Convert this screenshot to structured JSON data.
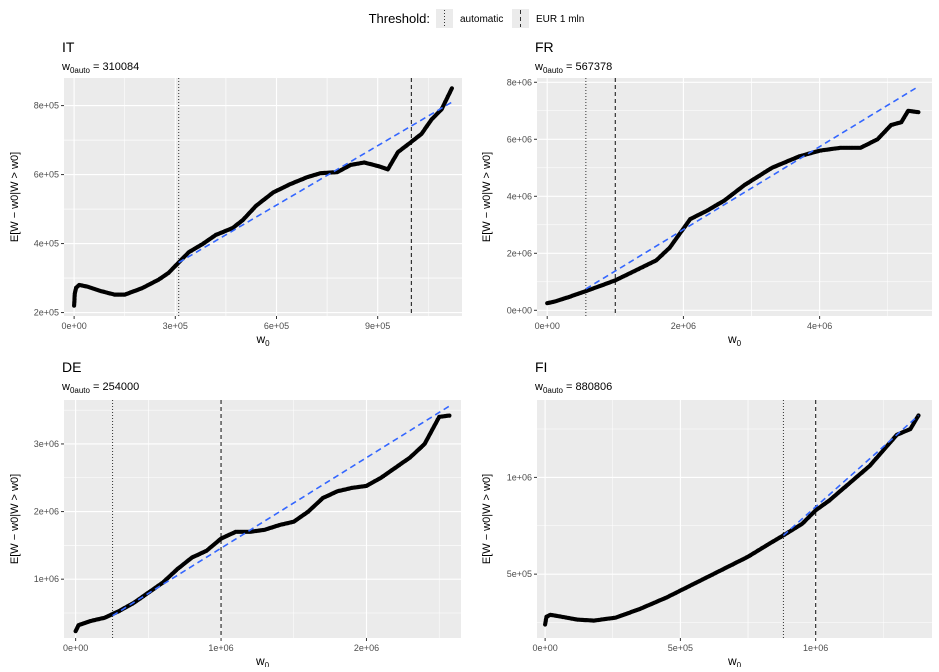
{
  "legend": {
    "title": "Threshold:",
    "items": [
      {
        "label": "automatic",
        "linetype": "dotted"
      },
      {
        "label": "EUR 1 mln",
        "linetype": "dashed"
      }
    ]
  },
  "colors": {
    "panel_bg": "#EBEBEB",
    "grid": "#FFFFFF",
    "points": "#000000",
    "fit_line": "#3366FF",
    "threshold_line": "#333333",
    "text": "#000000",
    "tick_text": "#4D4D4D"
  },
  "chart_data": [
    {
      "type": "scatter",
      "title": "IT",
      "subtitle_sub": "0auto",
      "subtitle_value": "310084",
      "xlabel_sub": "0",
      "ylabel": "E[W − w0|W > w0]",
      "xlim": [
        -30000,
        1150000
      ],
      "ylim": [
        190000,
        880000
      ],
      "xticks": [
        0,
        300000,
        600000,
        900000
      ],
      "xtick_labels": [
        "0e+00",
        "3e+05",
        "6e+05",
        "9e+05"
      ],
      "yticks": [
        200000,
        400000,
        600000,
        800000
      ],
      "ytick_labels": [
        "2e+05",
        "4e+05",
        "6e+05",
        "8e+05"
      ],
      "threshold_auto": 310084,
      "threshold_fixed": 1000000,
      "fit_line": [
        [
          310084,
          345000
        ],
        [
          1120000,
          810000
        ]
      ],
      "curve": [
        [
          0,
          220000
        ],
        [
          2000,
          255000
        ],
        [
          6000,
          272000
        ],
        [
          15000,
          280000
        ],
        [
          40000,
          275000
        ],
        [
          80000,
          262000
        ],
        [
          120000,
          252000
        ],
        [
          150000,
          252000
        ],
        [
          200000,
          270000
        ],
        [
          250000,
          295000
        ],
        [
          280000,
          315000
        ],
        [
          310000,
          345000
        ],
        [
          340000,
          375000
        ],
        [
          380000,
          398000
        ],
        [
          420000,
          425000
        ],
        [
          470000,
          445000
        ],
        [
          500000,
          468000
        ],
        [
          540000,
          510000
        ],
        [
          590000,
          548000
        ],
        [
          640000,
          572000
        ],
        [
          690000,
          592000
        ],
        [
          730000,
          604000
        ],
        [
          780000,
          607000
        ],
        [
          820000,
          628000
        ],
        [
          860000,
          635000
        ],
        [
          900000,
          625000
        ],
        [
          930000,
          615000
        ],
        [
          960000,
          665000
        ],
        [
          1000000,
          695000
        ],
        [
          1030000,
          718000
        ],
        [
          1060000,
          760000
        ],
        [
          1090000,
          790000
        ],
        [
          1120000,
          850000
        ]
      ]
    },
    {
      "type": "scatter",
      "title": "FR",
      "subtitle_sub": "0auto",
      "subtitle_value": "567378",
      "xlabel_sub": "0",
      "ylabel": "E[W − w0|W > w0]",
      "xlim": [
        -150000,
        5650000
      ],
      "ylim": [
        -200000,
        8150000
      ],
      "xticks": [
        0,
        2000000,
        4000000
      ],
      "xtick_labels": [
        "0e+00",
        "2e+06",
        "4e+06"
      ],
      "yticks": [
        0,
        2000000,
        4000000,
        6000000,
        8000000
      ],
      "ytick_labels": [
        "0e+00",
        "2e+06",
        "4e+06",
        "6e+06",
        "8e+06"
      ],
      "threshold_auto": 567378,
      "threshold_fixed": 1000000,
      "fit_line": [
        [
          567378,
          750000
        ],
        [
          5450000,
          7850000
        ]
      ],
      "curve": [
        [
          0,
          250000
        ],
        [
          100000,
          300000
        ],
        [
          300000,
          450000
        ],
        [
          600000,
          700000
        ],
        [
          1000000,
          1050000
        ],
        [
          1300000,
          1400000
        ],
        [
          1600000,
          1750000
        ],
        [
          1800000,
          2200000
        ],
        [
          1950000,
          2700000
        ],
        [
          2100000,
          3200000
        ],
        [
          2350000,
          3500000
        ],
        [
          2600000,
          3850000
        ],
        [
          2900000,
          4400000
        ],
        [
          3100000,
          4700000
        ],
        [
          3300000,
          5000000
        ],
        [
          3500000,
          5200000
        ],
        [
          3700000,
          5400000
        ],
        [
          4000000,
          5600000
        ],
        [
          4300000,
          5700000
        ],
        [
          4600000,
          5700000
        ],
        [
          4850000,
          6000000
        ],
        [
          5050000,
          6500000
        ],
        [
          5200000,
          6600000
        ],
        [
          5300000,
          7000000
        ],
        [
          5450000,
          6950000
        ]
      ]
    },
    {
      "type": "scatter",
      "title": "DE",
      "subtitle_sub": "0auto",
      "subtitle_value": "254000",
      "xlabel_sub": "0",
      "ylabel": "E[W − w0|W > w0]",
      "xlim": [
        -80000,
        2650000
      ],
      "ylim": [
        130000,
        3650000
      ],
      "xticks": [
        0,
        1000000,
        2000000
      ],
      "xtick_labels": [
        "0e+00",
        "1e+06",
        "2e+06"
      ],
      "yticks": [
        1000000,
        2000000,
        3000000
      ],
      "ytick_labels": [
        "1e+06",
        "2e+06",
        "3e+06"
      ],
      "threshold_auto": 254000,
      "threshold_fixed": 1000000,
      "fit_line": [
        [
          254000,
          460000
        ],
        [
          2570000,
          3560000
        ]
      ],
      "curve": [
        [
          0,
          230000
        ],
        [
          20000,
          320000
        ],
        [
          100000,
          380000
        ],
        [
          200000,
          430000
        ],
        [
          300000,
          530000
        ],
        [
          400000,
          650000
        ],
        [
          500000,
          800000
        ],
        [
          600000,
          950000
        ],
        [
          700000,
          1150000
        ],
        [
          800000,
          1320000
        ],
        [
          900000,
          1420000
        ],
        [
          1000000,
          1600000
        ],
        [
          1100000,
          1700000
        ],
        [
          1200000,
          1700000
        ],
        [
          1300000,
          1730000
        ],
        [
          1400000,
          1800000
        ],
        [
          1500000,
          1850000
        ],
        [
          1600000,
          2000000
        ],
        [
          1700000,
          2200000
        ],
        [
          1800000,
          2300000
        ],
        [
          1900000,
          2350000
        ],
        [
          2000000,
          2380000
        ],
        [
          2100000,
          2500000
        ],
        [
          2200000,
          2650000
        ],
        [
          2300000,
          2800000
        ],
        [
          2400000,
          3000000
        ],
        [
          2500000,
          3400000
        ],
        [
          2570000,
          3420000
        ]
      ]
    },
    {
      "type": "scatter",
      "title": "FI",
      "subtitle_sub": "0auto",
      "subtitle_value": "880806",
      "xlabel_sub": "0",
      "ylabel": "E[W − w0|W > w0]",
      "xlim": [
        -30000,
        1430000
      ],
      "ylim": [
        170000,
        1400000
      ],
      "xticks": [
        0,
        500000,
        1000000
      ],
      "xtick_labels": [
        "0e+00",
        "5e+05",
        "1e+06"
      ],
      "yticks": [
        500000,
        1000000
      ],
      "ytick_labels": [
        "5e+05",
        "1e+06"
      ],
      "threshold_auto": 880806,
      "threshold_fixed": 1000000,
      "fit_line": [
        [
          880806,
          700000
        ],
        [
          1380000,
          1320000
        ]
      ],
      "curve": [
        [
          0,
          240000
        ],
        [
          5000,
          280000
        ],
        [
          20000,
          290000
        ],
        [
          60000,
          280000
        ],
        [
          120000,
          265000
        ],
        [
          180000,
          260000
        ],
        [
          260000,
          275000
        ],
        [
          350000,
          320000
        ],
        [
          450000,
          380000
        ],
        [
          550000,
          450000
        ],
        [
          650000,
          520000
        ],
        [
          750000,
          590000
        ],
        [
          820000,
          650000
        ],
        [
          880000,
          700000
        ],
        [
          950000,
          760000
        ],
        [
          1000000,
          830000
        ],
        [
          1050000,
          880000
        ],
        [
          1100000,
          940000
        ],
        [
          1150000,
          1000000
        ],
        [
          1200000,
          1060000
        ],
        [
          1250000,
          1140000
        ],
        [
          1300000,
          1220000
        ],
        [
          1350000,
          1250000
        ],
        [
          1380000,
          1320000
        ]
      ]
    }
  ]
}
